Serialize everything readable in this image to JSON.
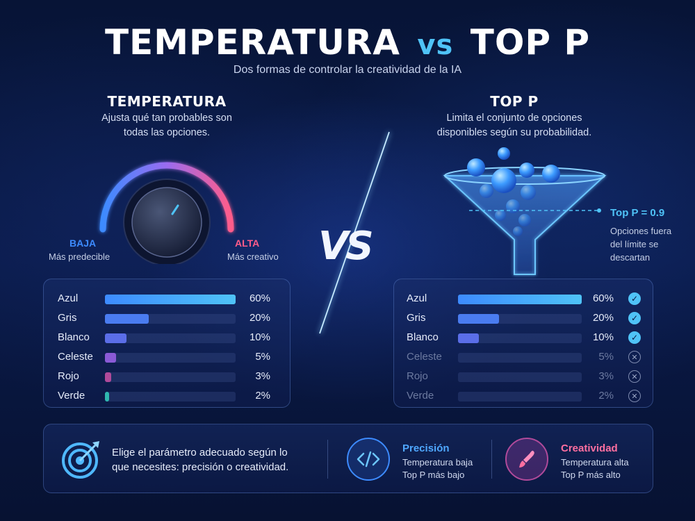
{
  "header": {
    "title_left": "TEMPERATURA",
    "title_vs": "vs",
    "title_right": "TOP P",
    "subtitle": "Dos formas de controlar la creatividad de la IA"
  },
  "temperatura": {
    "title": "TEMPERATURA",
    "desc_line1": "Ajusta qué tan probables son",
    "desc_line2": "todas las opciones.",
    "low_label": "BAJA",
    "low_sub": "Más predecible",
    "high_label": "ALTA",
    "high_sub": "Más creativo",
    "rows": [
      {
        "label": "Azul",
        "pct": "60%",
        "value": 60,
        "color": "#3d8bff"
      },
      {
        "label": "Gris",
        "pct": "20%",
        "value": 20,
        "color": "#4a7cf0"
      },
      {
        "label": "Blanco",
        "pct": "10%",
        "value": 10,
        "color": "#5b6ee8"
      },
      {
        "label": "Celeste",
        "pct": "5%",
        "value": 5,
        "color": "#8a5ad6"
      },
      {
        "label": "Rojo",
        "pct": "3%",
        "value": 3,
        "color": "#b04a9a"
      },
      {
        "label": "Verde",
        "pct": "2%",
        "value": 2,
        "color": "#2fb7b0"
      }
    ]
  },
  "vs_label": "VS",
  "top_p": {
    "title": "TOP P",
    "desc_line1": "Limita el conjunto de opciones",
    "desc_line2": "disponibles según su probabilidad.",
    "threshold_label": "Top P = 0.9",
    "note_line1": "Opciones fuera",
    "note_line2": "del límite se",
    "note_line3": "descartan",
    "rows": [
      {
        "label": "Azul",
        "pct": "60%",
        "value": 60,
        "kept": true,
        "color": "#3d8bff"
      },
      {
        "label": "Gris",
        "pct": "20%",
        "value": 20,
        "kept": true,
        "color": "#4a7cf0"
      },
      {
        "label": "Blanco",
        "pct": "10%",
        "value": 10,
        "kept": true,
        "color": "#5b6ee8"
      },
      {
        "label": "Celeste",
        "pct": "5%",
        "value": 5,
        "kept": false,
        "color": "#3a4a80"
      },
      {
        "label": "Rojo",
        "pct": "3%",
        "value": 3,
        "kept": false,
        "color": "#3a4a80"
      },
      {
        "label": "Verde",
        "pct": "2%",
        "value": 2,
        "kept": false,
        "color": "#3a4a80"
      }
    ]
  },
  "bottom": {
    "tip_line1": "Elige el parámetro adecuado según lo",
    "tip_line2": "que necesites: precisión o creatividad.",
    "precision": {
      "title": "Precisión",
      "line1": "Temperatura baja",
      "line2": "Top P más bajo"
    },
    "creatividad": {
      "title": "Creatividad",
      "line1": "Temperatura alta",
      "line2": "Top P más alto"
    }
  },
  "colors": {
    "accent": "#4fc3f7",
    "low": "#3d8bff",
    "high": "#ff5c8a",
    "precision": "#4fa8ff",
    "creatividad": "#ff6fa0"
  }
}
